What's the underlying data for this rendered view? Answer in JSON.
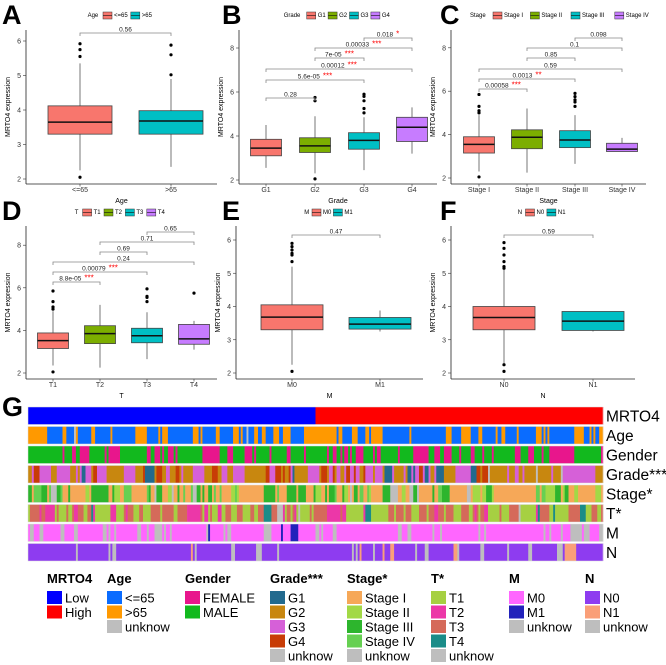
{
  "chart_data": [
    {
      "letter": "A",
      "type": "boxplot",
      "legend_title": "Age",
      "xlabel": "Age",
      "ylabel": "MRTO4 expression",
      "yticks": [
        2,
        3,
        4,
        5,
        6
      ],
      "groups": [
        {
          "name": "<=65",
          "color": "#F8766D",
          "min": 2.25,
          "q1": 3.3,
          "median": 3.65,
          "q3": 4.12,
          "max": 5.35,
          "outliers": [
            2.05,
            5.55,
            5.75,
            5.92
          ]
        },
        {
          "name": ">65",
          "color": "#00BFC4",
          "min": 2.35,
          "q1": 3.3,
          "median": 3.68,
          "q3": 3.98,
          "max": 4.9,
          "outliers": [
            5.02,
            5.6,
            5.88
          ]
        }
      ],
      "comparisons": [
        {
          "a": 0,
          "b": 1,
          "p": "0.56",
          "stars": ""
        }
      ]
    },
    {
      "letter": "B",
      "type": "boxplot",
      "legend_title": "Grade",
      "xlabel": "Grade",
      "ylabel": "MRTO4 expression",
      "yticks": [
        2,
        4,
        6,
        8
      ],
      "groups": [
        {
          "name": "G1",
          "color": "#F8766D",
          "min": 2.55,
          "q1": 3.1,
          "median": 3.45,
          "q3": 3.85,
          "max": 4.5,
          "outliers": []
        },
        {
          "name": "G2",
          "color": "#7CAE00",
          "min": 2.3,
          "q1": 3.25,
          "median": 3.55,
          "q3": 3.92,
          "max": 4.9,
          "outliers": [
            2.05,
            5.6,
            5.75
          ]
        },
        {
          "name": "G3",
          "color": "#00BFC4",
          "min": 2.45,
          "q1": 3.4,
          "median": 3.8,
          "q3": 4.15,
          "max": 4.85,
          "outliers": [
            5.05,
            5.25,
            5.6,
            5.8,
            5.9
          ]
        },
        {
          "name": "G4",
          "color": "#C77CFF",
          "min": 3.2,
          "q1": 3.75,
          "median": 4.4,
          "q3": 4.85,
          "max": 5.3,
          "outliers": []
        }
      ],
      "comparisons": [
        {
          "a": 0,
          "b": 1,
          "p": "0.28",
          "stars": ""
        },
        {
          "a": 0,
          "b": 2,
          "p": "5.6e-05",
          "stars": "***"
        },
        {
          "a": 0,
          "b": 3,
          "p": "0.00012",
          "stars": "***"
        },
        {
          "a": 1,
          "b": 2,
          "p": "7e-05",
          "stars": "***"
        },
        {
          "a": 1,
          "b": 3,
          "p": "0.00033",
          "stars": "***"
        },
        {
          "a": 2,
          "b": 3,
          "p": "0.018",
          "stars": "*"
        }
      ]
    },
    {
      "letter": "C",
      "type": "boxplot",
      "legend_title": "Stage",
      "xlabel": "Stage",
      "ylabel": "MRTO4 expression",
      "yticks": [
        2,
        4,
        6,
        8
      ],
      "groups": [
        {
          "name": "Stage I",
          "color": "#F8766D",
          "min": 2.3,
          "q1": 3.15,
          "median": 3.55,
          "q3": 3.9,
          "max": 4.9,
          "outliers": [
            2.05,
            5.0,
            5.1,
            5.3,
            5.85
          ]
        },
        {
          "name": "Stage II",
          "color": "#7CAE00",
          "min": 2.25,
          "q1": 3.35,
          "median": 3.88,
          "q3": 4.22,
          "max": 5.2,
          "outliers": []
        },
        {
          "name": "Stage III",
          "color": "#00BFC4",
          "min": 2.65,
          "q1": 3.4,
          "median": 3.75,
          "q3": 4.18,
          "max": 4.9,
          "outliers": [
            5.3,
            5.5,
            5.6,
            5.75,
            5.9
          ]
        },
        {
          "name": "Stage IV",
          "color": "#C77CFF",
          "min": 3.22,
          "q1": 3.22,
          "median": 3.33,
          "q3": 3.6,
          "max": 3.85,
          "outliers": []
        }
      ],
      "comparisons": [
        {
          "a": 0,
          "b": 1,
          "p": "0.00058",
          "stars": "***"
        },
        {
          "a": 0,
          "b": 2,
          "p": "0.0013",
          "stars": "**"
        },
        {
          "a": 0,
          "b": 3,
          "p": "0.59",
          "stars": ""
        },
        {
          "a": 1,
          "b": 2,
          "p": "0.85",
          "stars": ""
        },
        {
          "a": 1,
          "b": 3,
          "p": "0.1",
          "stars": ""
        },
        {
          "a": 2,
          "b": 3,
          "p": "0.098",
          "stars": ""
        }
      ]
    },
    {
      "letter": "D",
      "type": "boxplot",
      "legend_title": "T",
      "xlabel": "T",
      "ylabel": "MRTO4 expression",
      "yticks": [
        2,
        4,
        6,
        8
      ],
      "groups": [
        {
          "name": "T1",
          "color": "#F8766D",
          "min": 2.35,
          "q1": 3.15,
          "median": 3.52,
          "q3": 3.88,
          "max": 4.9,
          "outliers": [
            2.05,
            5.0,
            5.1,
            5.35,
            5.85
          ]
        },
        {
          "name": "T2",
          "color": "#7CAE00",
          "min": 2.25,
          "q1": 3.38,
          "median": 3.85,
          "q3": 4.22,
          "max": 5.2,
          "outliers": []
        },
        {
          "name": "T3",
          "color": "#00BFC4",
          "min": 2.65,
          "q1": 3.42,
          "median": 3.75,
          "q3": 4.1,
          "max": 4.85,
          "outliers": [
            5.35,
            5.55,
            5.6,
            5.95
          ]
        },
        {
          "name": "T4",
          "color": "#C77CFF",
          "min": 3.1,
          "q1": 3.35,
          "median": 3.6,
          "q3": 4.28,
          "max": 4.45,
          "outliers": [
            5.75
          ]
        }
      ],
      "comparisons": [
        {
          "a": 0,
          "b": 1,
          "p": "8.8e-05",
          "stars": "***"
        },
        {
          "a": 0,
          "b": 2,
          "p": "0.00079",
          "stars": "***"
        },
        {
          "a": 0,
          "b": 3,
          "p": "0.24",
          "stars": ""
        },
        {
          "a": 1,
          "b": 2,
          "p": "0.69",
          "stars": ""
        },
        {
          "a": 1,
          "b": 3,
          "p": "0.71",
          "stars": ""
        },
        {
          "a": 2,
          "b": 3,
          "p": "0.65",
          "stars": ""
        }
      ]
    },
    {
      "letter": "E",
      "type": "boxplot",
      "legend_title": "M",
      "xlabel": "M",
      "ylabel": "MRTO4 expression",
      "yticks": [
        2,
        3,
        4,
        5,
        6
      ],
      "groups": [
        {
          "name": "M0",
          "color": "#F8766D",
          "min": 2.25,
          "q1": 3.3,
          "median": 3.68,
          "q3": 4.05,
          "max": 5.2,
          "outliers": [
            2.05,
            5.35,
            5.55,
            5.6,
            5.7,
            5.8,
            5.9
          ]
        },
        {
          "name": "M1",
          "color": "#00BFC4",
          "min": 3.25,
          "q1": 3.32,
          "median": 3.47,
          "q3": 3.67,
          "max": 3.88,
          "outliers": []
        }
      ],
      "comparisons": [
        {
          "a": 0,
          "b": 1,
          "p": "0.47",
          "stars": ""
        }
      ]
    },
    {
      "letter": "F",
      "type": "boxplot",
      "legend_title": "N",
      "xlabel": "N",
      "ylabel": "MRTO4 expression",
      "yticks": [
        2,
        3,
        4,
        5,
        6
      ],
      "groups": [
        {
          "name": "N0",
          "color": "#F8766D",
          "min": 2.3,
          "q1": 3.3,
          "median": 3.67,
          "q3": 4.0,
          "max": 5.1,
          "outliers": [
            2.05,
            2.25,
            5.15,
            5.2,
            5.35,
            5.55,
            5.75,
            5.92
          ]
        },
        {
          "name": "N1",
          "color": "#00BFC4",
          "min": 3.25,
          "q1": 3.28,
          "median": 3.56,
          "q3": 3.85,
          "max": 3.85,
          "outliers": []
        }
      ],
      "comparisons": [
        {
          "a": 0,
          "b": 1,
          "p": "0.59",
          "stars": ""
        }
      ]
    }
  ],
  "heatmap": {
    "letter": "G",
    "tracks": [
      {
        "label": "MRTO4",
        "categories": [
          {
            "name": "Low",
            "color": "#0000FF",
            "share": 0.5
          },
          {
            "name": "High",
            "color": "#FF0000",
            "share": 0.5
          }
        ]
      },
      {
        "label": "Age",
        "categories": [
          {
            "name": "<=65",
            "color": "#0A6CFF",
            "share": 0.62
          },
          {
            "name": ">65",
            "color": "#FF9900",
            "share": 0.35
          },
          {
            "name": "unknow",
            "color": "#BEBEBE",
            "share": 0.03
          }
        ]
      },
      {
        "label": "Gender",
        "categories": [
          {
            "name": "FEMALE",
            "color": "#E8168C",
            "share": 0.35
          },
          {
            "name": "MALE",
            "color": "#12B91E",
            "share": 0.65
          }
        ]
      },
      {
        "label": "Grade***",
        "categories": [
          {
            "name": "G1",
            "color": "#226A8E",
            "share": 0.04
          },
          {
            "name": "G2",
            "color": "#C8870F",
            "share": 0.42
          },
          {
            "name": "G3",
            "color": "#D660D8",
            "share": 0.39
          },
          {
            "name": "G4",
            "color": "#C83C06",
            "share": 0.12
          },
          {
            "name": "unknow",
            "color": "#BEBEBE",
            "share": 0.03
          }
        ]
      },
      {
        "label": "Stage*",
        "categories": [
          {
            "name": "Stage I",
            "color": "#F6A858",
            "share": 0.48
          },
          {
            "name": "Stage II",
            "color": "#A2D946",
            "share": 0.13
          },
          {
            "name": "Stage III",
            "color": "#2DB52D",
            "share": 0.24
          },
          {
            "name": "Stage IV",
            "color": "#66D052",
            "share": 0.08
          },
          {
            "name": "unknow",
            "color": "#BEBEBE",
            "share": 0.07
          }
        ]
      },
      {
        "label": "T*",
        "categories": [
          {
            "name": "T1",
            "color": "#A6D042",
            "share": 0.5
          },
          {
            "name": "T2",
            "color": "#EC37A8",
            "share": 0.14
          },
          {
            "name": "T3",
            "color": "#D56A5A",
            "share": 0.32
          },
          {
            "name": "T4",
            "color": "#1A8C88",
            "share": 0.02
          },
          {
            "name": "unknow",
            "color": "#BEBEBE",
            "share": 0.02
          }
        ]
      },
      {
        "label": "M",
        "categories": [
          {
            "name": "M0",
            "color": "#FF66FF",
            "share": 0.8
          },
          {
            "name": "M1",
            "color": "#2222BB",
            "share": 0.02
          },
          {
            "name": "unknow",
            "color": "#BEBEBE",
            "share": 0.18
          }
        ]
      },
      {
        "label": "N",
        "categories": [
          {
            "name": "N0",
            "color": "#8E3CF0",
            "share": 0.85
          },
          {
            "name": "N1",
            "color": "#FA9F78",
            "share": 0.02
          },
          {
            "name": "unknow",
            "color": "#BEBEBE",
            "share": 0.13
          }
        ]
      }
    ]
  }
}
